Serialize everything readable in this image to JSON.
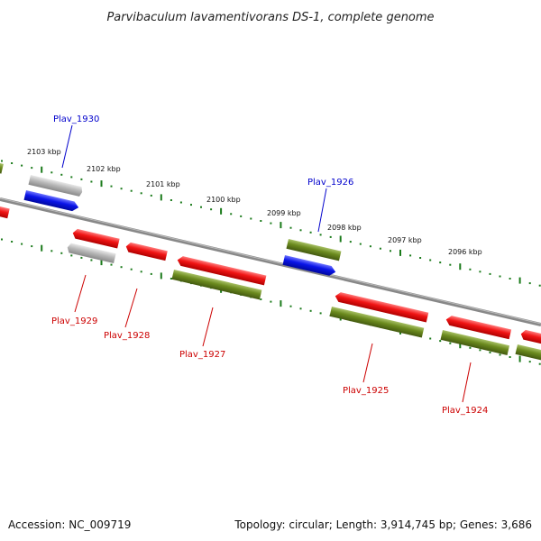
{
  "title": "Parvibaculum lavamentivorans DS-1, complete genome",
  "footer": {
    "accession": "Accession: NC_009719",
    "summary": "Topology: circular; Length: 3,914,745 bp; Genes: 3,686"
  },
  "colors": {
    "forward_gene_label": "#0000cc",
    "reverse_gene_label": "#cc0000",
    "blue_gene": "#0a14e8",
    "red_gene": "#f01414",
    "green_gene": "#6b8a1e",
    "gray_gene": "#b8b8b8",
    "backbone": "#888888",
    "tick": "#1a7a1a"
  },
  "scale_labels": [
    {
      "text": "2103 kbp"
    },
    {
      "text": "2102 kbp"
    },
    {
      "text": "2101 kbp"
    },
    {
      "text": "2100 kbp"
    },
    {
      "text": "2099 kbp"
    },
    {
      "text": "2098 kbp"
    },
    {
      "text": "2097 kbp"
    },
    {
      "text": "2096 kbp"
    }
  ],
  "gene_labels": [
    {
      "name": "Plav_1930",
      "strand": "forward"
    },
    {
      "name": "Plav_1926",
      "strand": "forward"
    },
    {
      "name": "Plav_1929",
      "strand": "reverse"
    },
    {
      "name": "Plav_1928",
      "strand": "reverse"
    },
    {
      "name": "Plav_1927",
      "strand": "reverse"
    },
    {
      "name": "Plav_1925",
      "strand": "reverse"
    },
    {
      "name": "Plav_1924",
      "strand": "reverse"
    }
  ]
}
